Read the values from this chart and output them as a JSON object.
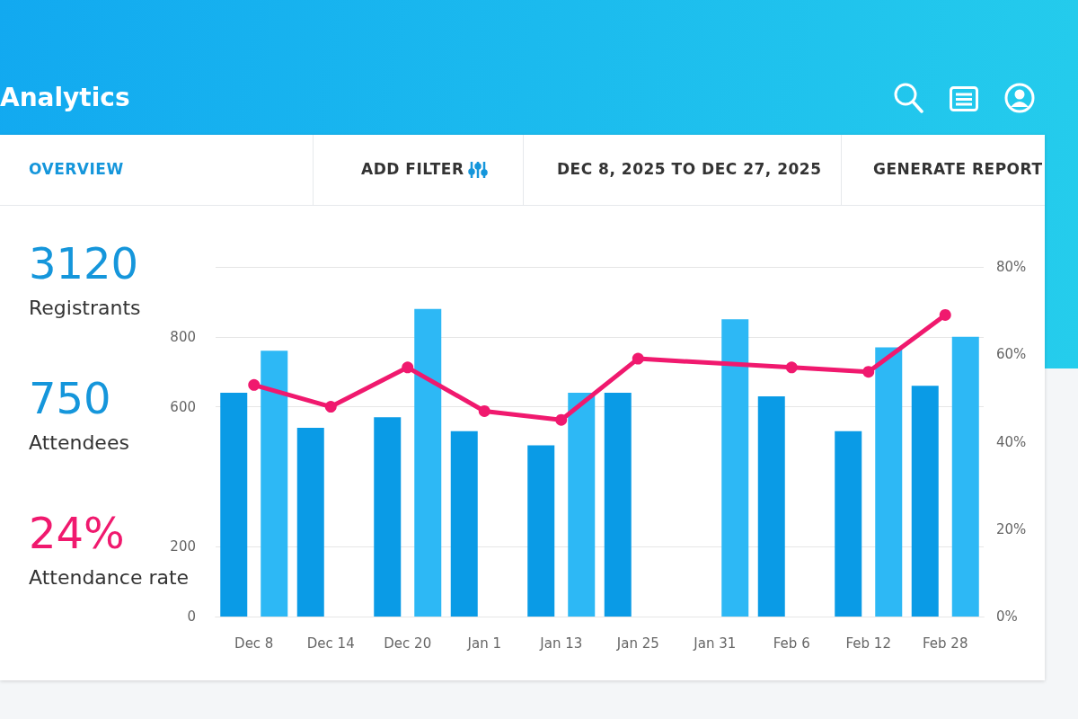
{
  "chart_data": [
    {
      "type": "other",
      "title": "Analytics",
      "annotations": [
        "OVERVIEW",
        "ADD FILTER",
        "DEC 8, 2025 TO DEC 27, 2025",
        "GENERATE REPORT",
        "3120",
        "Registrants",
        "750",
        "Attendees",
        "24%",
        "Attendance rate"
      ]
    },
    {
      "type": "bar",
      "categories": [
        "Dec 8",
        "Dec 14",
        "Dec 20",
        "Jan 1",
        "Jan 13",
        "Jan 25",
        "Jan 31",
        "Feb 6",
        "Feb 12",
        "Feb 28"
      ],
      "series": [
        {
          "color": "#0a9be6",
          "values": [
            640,
            540,
            570,
            530,
            490,
            640,
            null,
            630,
            530,
            660
          ]
        },
        {
          "color": "#2db8f5",
          "values": [
            760,
            null,
            880,
            null,
            640,
            null,
            850,
            null,
            770,
            800
          ]
        },
        {
          "type": "line",
          "axis": "y2",
          "color": "#f0196e",
          "values": [
            53,
            48,
            57,
            47,
            45,
            59,
            null,
            57,
            56,
            69
          ]
        }
      ],
      "ylim": [
        0,
        1000
      ],
      "yticks": [
        0,
        200,
        600,
        800,
        {
          "value": 1000,
          "label": null
        }
      ],
      "y2lim": [
        0,
        80
      ],
      "y2ticks": [
        {
          "value": 0,
          "label": "0%"
        },
        {
          "value": 20,
          "label": "20%"
        },
        {
          "value": 40,
          "label": "40%"
        },
        {
          "value": 60,
          "label": "60%"
        },
        {
          "value": 80,
          "label": "80%"
        }
      ],
      "grid": "y",
      "marker": "circle",
      "line_style": "solid"
    }
  ]
}
